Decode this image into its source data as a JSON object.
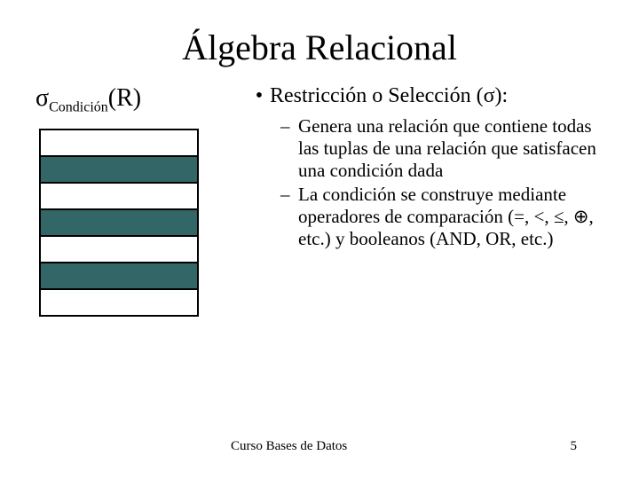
{
  "title": "Álgebra Relacional",
  "formula": {
    "sigma": "σ",
    "subscript": "Condición",
    "arg": "(R)"
  },
  "diagram": {
    "rows": [
      {
        "selected": false
      },
      {
        "selected": true
      },
      {
        "selected": false
      },
      {
        "selected": true
      },
      {
        "selected": false
      },
      {
        "selected": true
      },
      {
        "selected": false
      }
    ],
    "selected_color": "#336666",
    "plain_color": "#ffffff",
    "border_color": "#000000"
  },
  "main_bullet": {
    "label": "Restricción o Selección (σ):"
  },
  "sub_bullets": [
    "Genera una relación que contiene todas las tuplas de una relación que satisfacen una condición dada",
    "La condición se construye mediante operadores de comparación (=, <, ≤, ⊕, etc.) y booleanos (AND, OR, etc.)"
  ],
  "footer": {
    "text": "Curso Bases de Datos",
    "page": "5"
  }
}
